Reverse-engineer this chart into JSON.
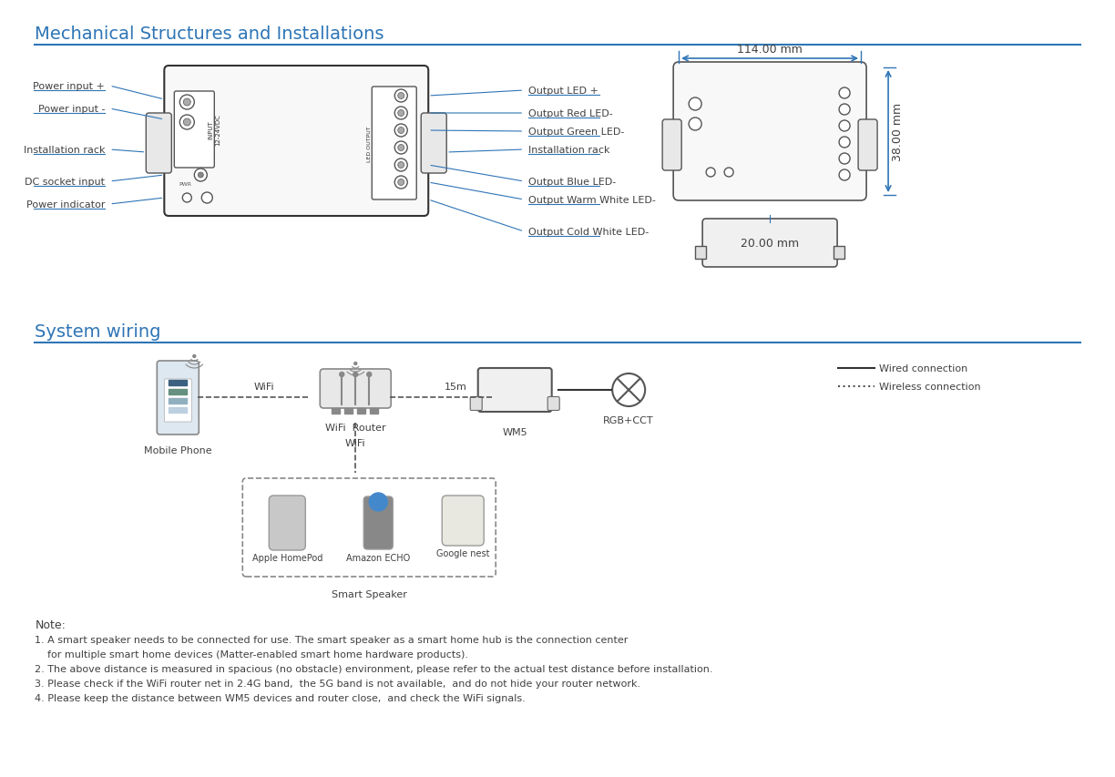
{
  "title1": "Mechanical Structures and Installations",
  "title2": "System wiring",
  "header_color": "#2e75b6",
  "line_color": "#2e75b6",
  "text_color": "#404040",
  "bg_color": "#ffffff",
  "left_labels": [
    "Power input +",
    "Power input -",
    "Installation rack",
    "DC socket input",
    "Power indicator"
  ],
  "right_labels": [
    "Output LED +",
    "Output Red LED-",
    "Output Green LED-",
    "Installation rack",
    "Output Blue LED-",
    "Output Warm White LED-",
    "Output Cold White LED-"
  ],
  "dim_width": "114.00 mm",
  "dim_height": "38.00 mm",
  "dim_depth": "20.00 mm",
  "wiring_labels": [
    "Mobile Phone",
    "WiFi  Router",
    "WM5",
    "RGB+CCT",
    "Smart Speaker"
  ],
  "wiring_sublabels": [
    "WiFi",
    "15m",
    "WiFi"
  ],
  "smart_speaker_items": [
    "Apple HomePod",
    "Amazon ECHO",
    "Google nest"
  ],
  "legend_wired": "Wired connection",
  "legend_wireless": "Wireless connection",
  "notes_title": "Note:",
  "notes": [
    "1. A smart speaker needs to be connected for use. The smart speaker as a smart home hub is the connection center",
    "    for multiple smart home devices (Matter-enabled smart home hardware products).",
    "2. The above distance is measured in spacious (no obstacle) environment, please refer to the actual test distance before installation.",
    "3. Please check if the WiFi router net in 2.4G band,  the 5G band is not available,  and do not hide your router network.",
    "4. Please keep the distance between WM5 devices and router close,  and check the WiFi signals."
  ]
}
